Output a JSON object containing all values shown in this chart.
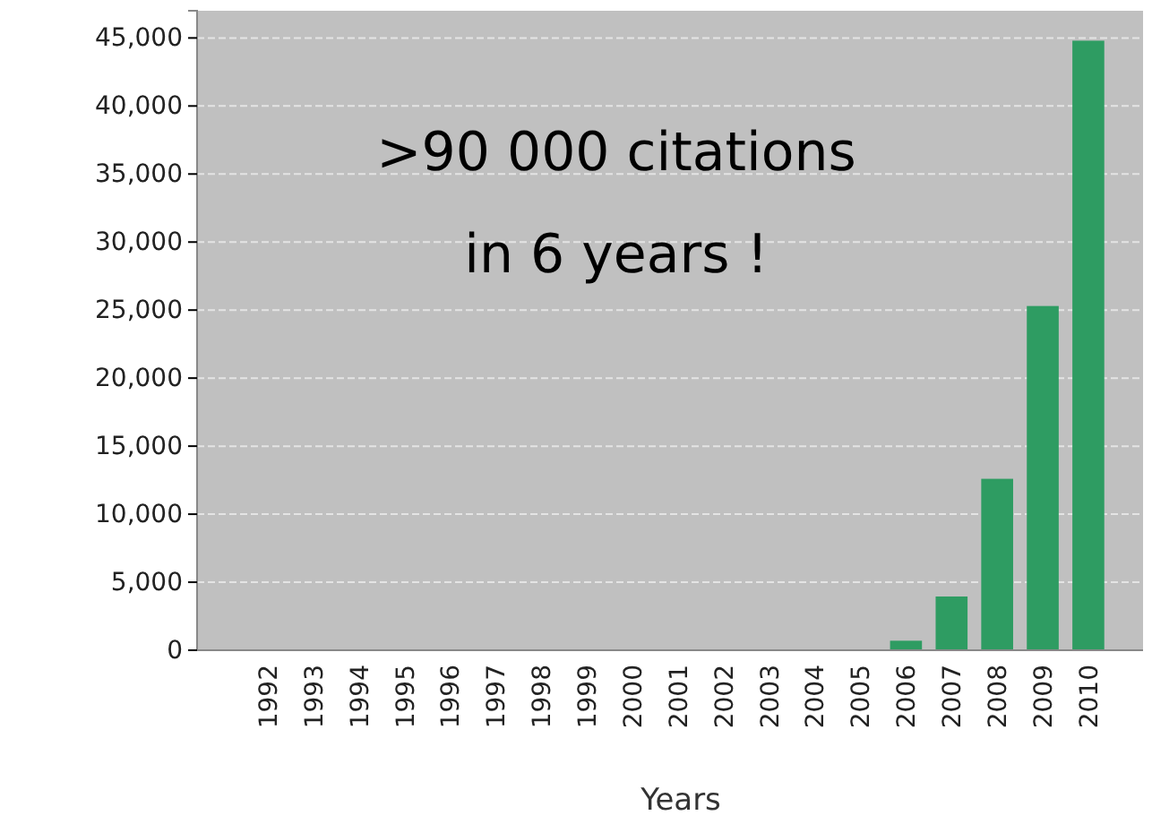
{
  "chart_data": {
    "type": "bar",
    "xlabel": "Years",
    "categories": [
      "1992",
      "1993",
      "1994",
      "1995",
      "1996",
      "1997",
      "1998",
      "1999",
      "2000",
      "2001",
      "2002",
      "2003",
      "2004",
      "2005",
      "2006",
      "2007",
      "2008",
      "2009",
      "2010"
    ],
    "values": [
      0,
      0,
      0,
      0,
      0,
      0,
      0,
      0,
      0,
      0,
      0,
      0,
      0,
      0,
      700,
      3950,
      12600,
      25300,
      44800
    ],
    "color": "#2e9c62",
    "ylim": [
      0,
      47000
    ],
    "yticks": [
      {
        "value": 0,
        "label": "0"
      },
      {
        "value": 5000,
        "label": "5,000"
      },
      {
        "value": 10000,
        "label": "10,000"
      },
      {
        "value": 15000,
        "label": "15,000"
      },
      {
        "value": 20000,
        "label": "20,000"
      },
      {
        "value": 25000,
        "label": "25,000"
      },
      {
        "value": 30000,
        "label": "30,000"
      },
      {
        "value": 35000,
        "label": "35,000"
      },
      {
        "value": 40000,
        "label": "40,000"
      },
      {
        "value": 45000,
        "label": "45,000"
      }
    ],
    "grid": "y",
    "annotations": [
      ">90 000 citations\nin 6 years !"
    ]
  }
}
